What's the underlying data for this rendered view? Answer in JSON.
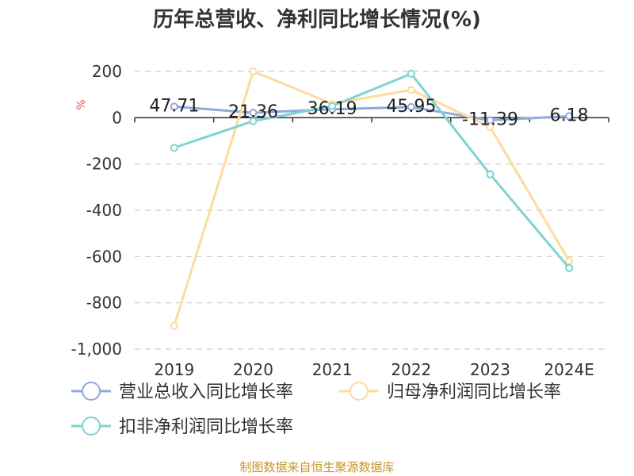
{
  "chart_data": {
    "type": "line",
    "title": "历年总营收、净利同比增长情况(%)",
    "ylabel": "%",
    "categories": [
      "2019",
      "2020",
      "2021",
      "2022",
      "2023",
      "2024E"
    ],
    "ylim": [
      -1000,
      200
    ],
    "yticks": [
      200,
      0,
      -200,
      -400,
      -600,
      -800,
      -1000
    ],
    "ytick_labels": [
      "200",
      "0",
      "-200",
      "-400",
      "-600",
      "-800",
      "-1,000"
    ],
    "grid": true,
    "series": [
      {
        "name": "营业总收入同比增长率",
        "color": "#8eaadb",
        "values": [
          47.71,
          21.36,
          36.19,
          45.95,
          -11.39,
          6.18
        ],
        "data_labels": [
          "47.71",
          "21.36",
          "36.19",
          "45.95",
          "-11.39",
          "6.18"
        ]
      },
      {
        "name": "归母净利润同比增长率",
        "color": "#fddb9c",
        "values": [
          -900,
          200,
          60,
          120,
          -40,
          -620
        ]
      },
      {
        "name": "扣非净利润同比增长率",
        "color": "#7fd3d3",
        "values": [
          -130,
          -15,
          50,
          190,
          -245,
          -650
        ]
      }
    ],
    "legend_position": "bottom-left"
  },
  "source_text": "制图数据来自恒生聚源数据库"
}
